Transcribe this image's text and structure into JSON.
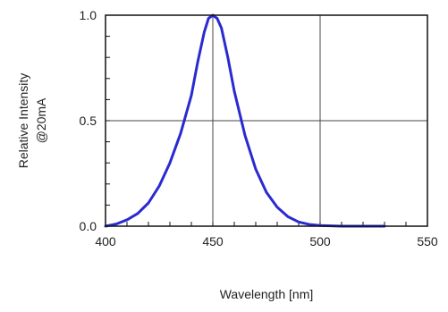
{
  "chart_data": {
    "type": "line",
    "title": "",
    "xlabel": "Wavelength [nm]",
    "ylabel": [
      "Relative Intensity",
      "@20mA"
    ],
    "xlim": [
      400,
      550
    ],
    "ylim": [
      0.0,
      1.0
    ],
    "x_ticks": [
      "400",
      "450",
      "500",
      "550"
    ],
    "y_ticks": [
      "0.0",
      "0.5",
      "1.0"
    ],
    "x_tick_values": [
      400,
      450,
      500,
      550
    ],
    "y_tick_values": [
      0.0,
      0.5,
      1.0
    ],
    "grid": true,
    "line_color": "#2a2ad0",
    "series": [
      {
        "x": [
          400,
          405,
          410,
          415,
          420,
          425,
          430,
          435,
          440,
          443,
          446,
          448,
          450,
          452,
          454,
          457,
          460,
          465,
          470,
          475,
          480,
          485,
          490,
          495,
          500,
          510,
          520,
          530
        ],
        "y": [
          0.0,
          0.01,
          0.03,
          0.06,
          0.11,
          0.19,
          0.3,
          0.44,
          0.62,
          0.78,
          0.92,
          0.985,
          1.0,
          0.985,
          0.94,
          0.8,
          0.64,
          0.43,
          0.27,
          0.16,
          0.09,
          0.045,
          0.02,
          0.008,
          0.003,
          0.0,
          0.0,
          0.0
        ]
      }
    ]
  }
}
